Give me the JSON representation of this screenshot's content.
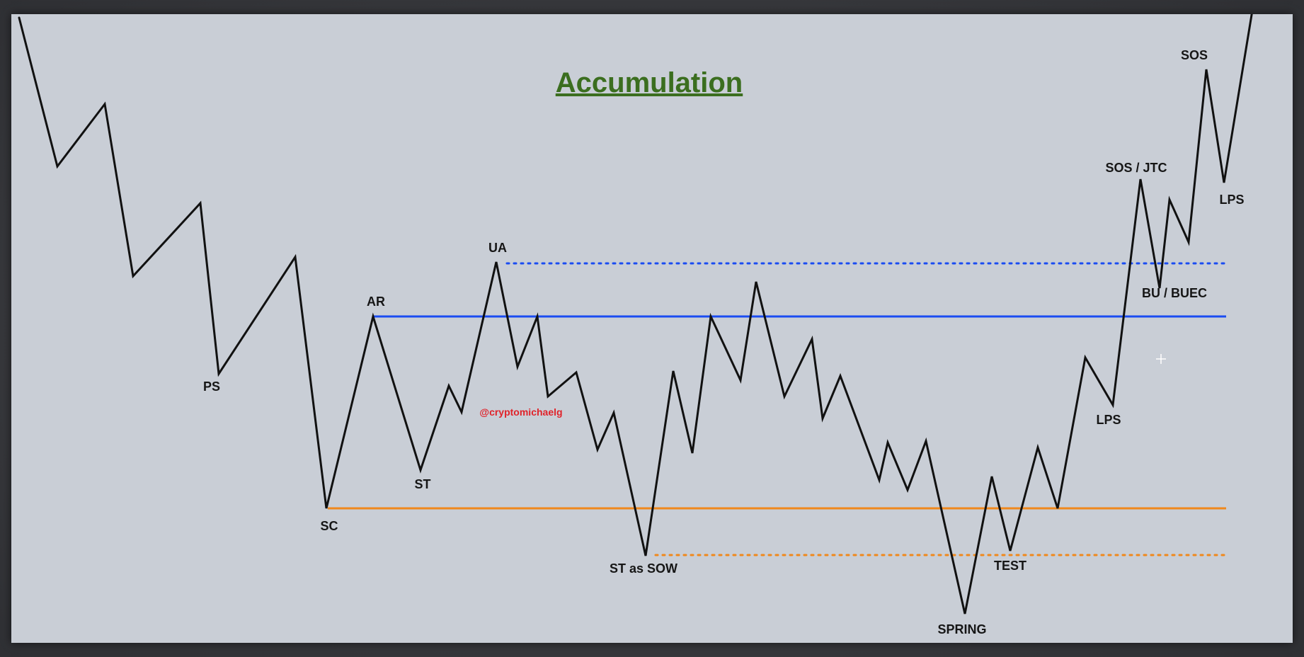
{
  "title": "Accumulation",
  "watermark": "@cryptomichaelg",
  "colors": {
    "background": "#c9ced6",
    "price_line": "#111111",
    "resistance": "#1a4cf2",
    "support": "#f0881c",
    "title": "#3b6e1f",
    "watermark": "#e0232a"
  },
  "labels": {
    "ps": "PS",
    "sc": "SC",
    "ar": "AR",
    "st": "ST",
    "ua": "UA",
    "st_sow": "ST as SOW",
    "spring": "SPRING",
    "test": "TEST",
    "lps_low": "LPS",
    "bu_buec": "BU / BUEC",
    "sos_jtc": "SOS / JTC",
    "sos": "SOS",
    "lps_high": "LPS"
  }
}
